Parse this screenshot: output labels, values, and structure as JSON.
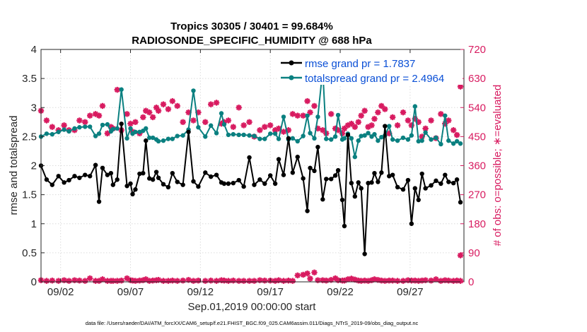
{
  "chart_data": {
    "type": "line",
    "title_line1": "Tropics 30305 / 30401 = 99.684%",
    "title_line2": "RADIOSONDE_SPECIFIC_HUMIDITY @ 688 hPa",
    "xlabel": "Sep.01,2019 00:00:00 start",
    "ylabel_left": "rmse and totalspread",
    "ylabel_right": "# of obs: o=possible; ∗=evaluated",
    "footer": "data file: /Users/raeder/DAI/ATM_forcXX/CAM6_setup/f.e21.FHIST_BGC.f09_025.CAM6assim.011/Diags_NTrS_2019-09/obs_diag_output.nc",
    "xlim": [
      0.6,
      30.85
    ],
    "ylim_left": [
      0,
      4
    ],
    "ylim_right": [
      0,
      720
    ],
    "x_tick_values": [
      2,
      7,
      12,
      17,
      22,
      27
    ],
    "x_tick_labels": [
      "09/02",
      "09/07",
      "09/12",
      "09/17",
      "09/22",
      "09/27"
    ],
    "y_left_ticks": [
      "0",
      "0.5",
      "1",
      "1.5",
      "2",
      "2.5",
      "3",
      "3.5",
      "4"
    ],
    "y_right_ticks": [
      "0",
      "90",
      "180",
      "270",
      "360",
      "450",
      "540",
      "630",
      "720"
    ],
    "x": [
      0.6,
      1.0,
      1.4,
      1.85,
      2.25,
      2.6,
      3.0,
      3.35,
      3.75,
      4.1,
      4.5,
      4.75,
      5.0,
      5.35,
      5.6,
      5.75,
      6.05,
      6.35,
      6.75,
      7.0,
      7.15,
      7.35,
      7.65,
      7.9,
      8.1,
      8.35,
      8.6,
      8.85,
      9.0,
      9.35,
      9.7,
      10.0,
      10.35,
      10.75,
      11.15,
      11.5,
      11.85,
      12.35,
      12.75,
      13.15,
      13.5,
      13.7,
      14.0,
      14.35,
      14.75,
      15.1,
      15.5,
      15.85,
      16.25,
      16.6,
      17.0,
      17.35,
      17.6,
      17.95,
      18.3,
      18.6,
      18.95,
      19.35,
      19.65,
      19.85,
      20.15,
      20.4,
      20.75,
      21.0,
      21.35,
      21.65,
      21.85,
      22.15,
      22.3,
      22.55,
      22.8,
      23.05,
      23.3,
      23.5,
      23.75,
      24.0,
      24.25,
      24.45,
      24.7,
      24.95,
      25.2,
      25.5,
      25.75,
      26.1,
      26.5,
      26.85,
      27.1,
      27.35,
      27.6,
      27.85,
      28.1,
      28.5,
      28.85,
      29.2,
      29.5,
      29.75,
      30.1,
      30.35,
      30.6
    ],
    "series": [
      {
        "name": "rmse grand pr = 1.7837",
        "color": "#000000",
        "values": [
          2.0,
          1.76,
          1.67,
          1.82,
          1.71,
          1.75,
          1.82,
          1.79,
          1.84,
          1.82,
          2.01,
          1.38,
          1.96,
          1.84,
          1.87,
          1.67,
          1.76,
          2.72,
          1.65,
          1.69,
          1.51,
          1.59,
          1.86,
          1.87,
          2.43,
          1.78,
          1.76,
          1.89,
          1.79,
          1.68,
          1.63,
          1.87,
          1.72,
          1.67,
          2.58,
          1.73,
          1.64,
          1.88,
          1.81,
          1.84,
          1.71,
          1.69,
          1.69,
          1.7,
          1.75,
          1.64,
          2.14,
          1.67,
          1.76,
          1.69,
          1.83,
          1.69,
          2.11,
          1.84,
          2.47,
          1.88,
          2.15,
          1.78,
          1.22,
          1.96,
          1.91,
          2.32,
          1.42,
          1.77,
          1.77,
          1.83,
          1.92,
          1.41,
          0.96,
          2.53,
          1.7,
          1.47,
          1.71,
          1.61,
          0.48,
          1.7,
          1.71,
          1.87,
          1.72,
          1.88,
          2.68,
          1.82,
          1.84,
          1.63,
          1.59,
          1.75,
          1.0,
          1.61,
          1.41,
          1.86,
          1.61,
          1.66,
          1.74,
          1.69,
          1.84,
          1.72,
          1.7,
          1.76,
          1.37
        ],
        "visible_count": 0
      }
    ]
  },
  "legend": {
    "rmse": "rmse grand pr = 1.7837",
    "spread": "totalspread grand pr = 2.4964"
  },
  "colors": {
    "rmse": "#000000",
    "spread": "#0a8080",
    "obs": "#d81b60",
    "legend_text": "#0a4fd6"
  }
}
